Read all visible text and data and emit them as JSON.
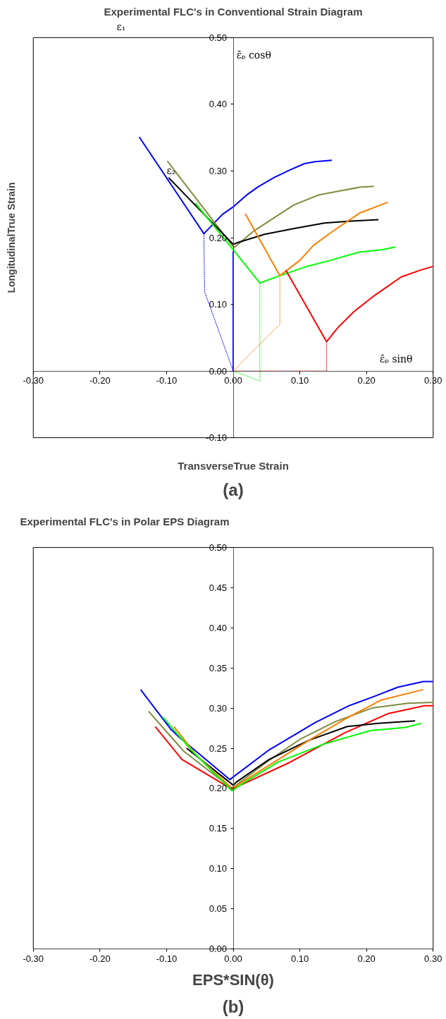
{
  "chart_data": [
    {
      "type": "line",
      "title": "Experimental FLC's in Conventional Strain Diagram",
      "xlabel": "TransverseTrue Strain",
      "ylabel": "LongitudinalTrue Strain",
      "annotations": [
        "ε₁",
        "ε₂",
        "ε̄ₚ cosθ",
        "ε̄ₚ sinθ",
        "(a)"
      ],
      "xlim": [
        -0.3,
        0.3
      ],
      "ylim": [
        -0.1,
        0.5
      ],
      "xticks": [
        {
          "value": -0.3,
          "label": "-0.30"
        },
        {
          "value": -0.2,
          "label": "-0.20"
        },
        {
          "value": -0.1,
          "label": "-0.10"
        },
        {
          "value": 0,
          "label": "0.00"
        },
        {
          "value": 0.1,
          "label": "0.10"
        },
        {
          "value": 0.2,
          "label": "0.20"
        },
        {
          "value": 0.3,
          "label": "0.30"
        }
      ],
      "yticks": [
        {
          "value": -0.1,
          "label": "-0.10"
        },
        {
          "value": 0,
          "label": "0.00"
        },
        {
          "value": 0.1,
          "label": "0.10"
        },
        {
          "value": 0.2,
          "label": "0.20"
        },
        {
          "value": 0.3,
          "label": "0.30"
        },
        {
          "value": 0.4,
          "label": "0.40"
        },
        {
          "value": 0.5,
          "label": "0.50"
        }
      ],
      "series": [
        {
          "color": "#0000ff",
          "x": [
            -0.141,
            -0.044,
            -0.016,
            0.001,
            0.019,
            0.037,
            0.061,
            0.086,
            0.107,
            0.123,
            0.148
          ],
          "values": [
            0.351,
            0.206,
            0.235,
            0.247,
            0.263,
            0.276,
            0.29,
            0.302,
            0.311,
            0.314,
            0.316
          ]
        },
        {
          "color": "#0000ff",
          "line_style": "dashed",
          "x": [
            -0.044,
            -0.043,
            0
          ],
          "values": [
            0.206,
            0.119,
            0
          ]
        },
        {
          "color": "#0000ff",
          "x": [
            0,
            0
          ],
          "values": [
            0,
            0.18
          ]
        },
        {
          "color": "#7f8c3f",
          "x": [
            -0.099,
            0.001,
            0.031,
            0.06,
            0.091,
            0.128,
            0.16,
            0.192,
            0.211
          ],
          "values": [
            0.315,
            0.185,
            0.21,
            0.229,
            0.249,
            0.264,
            0.27,
            0.276,
            0.277
          ]
        },
        {
          "color": "#000000",
          "x": [
            -0.097,
            0.0,
            0.005,
            0.047,
            0.093,
            0.137,
            0.181,
            0.218
          ],
          "values": [
            0.29,
            0.19,
            0.192,
            0.205,
            0.214,
            0.222,
            0.225,
            0.227
          ]
        },
        {
          "color": "#00ff00",
          "x": [
            -0.057,
            0,
            0.04,
            0.07,
            0.111,
            0.146,
            0.188,
            0.224,
            0.243
          ],
          "values": [
            0.252,
            0.182,
            0.132,
            0.143,
            0.157,
            0.166,
            0.178,
            0.182,
            0.186
          ]
        },
        {
          "color": "#00ff00",
          "line_style": "dashed",
          "x": [
            0.04,
            0.04,
            0
          ],
          "values": [
            0.132,
            -0.015,
            0
          ]
        },
        {
          "color": "#ff7f00",
          "x": [
            0.018,
            0.07,
            0.1,
            0.121,
            0.15,
            0.19,
            0.232
          ],
          "values": [
            0.236,
            0.143,
            0.166,
            0.189,
            0.21,
            0.237,
            0.253
          ]
        },
        {
          "color": "#ff7f00",
          "line_style": "dashed",
          "x": [
            0.07,
            0.07,
            0
          ],
          "values": [
            0.143,
            0.07,
            0
          ]
        },
        {
          "color": "#ff0000",
          "x": [
            0.079,
            0.14,
            0.157,
            0.181,
            0.213,
            0.252,
            0.28,
            0.3
          ],
          "values": [
            0.151,
            0.044,
            0.065,
            0.089,
            0.114,
            0.141,
            0.151,
            0.157
          ]
        },
        {
          "color": "#ff0000",
          "line_style": "dashed",
          "x": [
            0.14,
            0.14,
            0
          ],
          "values": [
            0.044,
            0,
            0
          ]
        }
      ]
    },
    {
      "type": "line",
      "title": "Experimental FLC's in Polar EPS Diagram",
      "xlabel": "EPS*SIN(θ)",
      "annotations": [
        "(b)"
      ],
      "xlim": [
        -0.3,
        0.3
      ],
      "ylim": [
        0,
        0.5
      ],
      "xticks": [
        {
          "value": -0.3,
          "label": "-0.30"
        },
        {
          "value": -0.2,
          "label": "-0.20"
        },
        {
          "value": -0.1,
          "label": "-0.10"
        },
        {
          "value": 0,
          "label": "0.00"
        },
        {
          "value": 0.1,
          "label": "0.10"
        },
        {
          "value": 0.2,
          "label": "0.20"
        },
        {
          "value": 0.3,
          "label": "0.30"
        }
      ],
      "yticks": [
        {
          "value": 0,
          "label": "0.00"
        },
        {
          "value": 0.05,
          "label": "0.05"
        },
        {
          "value": 0.1,
          "label": "0.10"
        },
        {
          "value": 0.15,
          "label": "0.15"
        },
        {
          "value": 0.2,
          "label": "0.20"
        },
        {
          "value": 0.25,
          "label": "0.25"
        },
        {
          "value": 0.3,
          "label": "0.30"
        },
        {
          "value": 0.35,
          "label": "0.35"
        },
        {
          "value": 0.4,
          "label": "0.40"
        },
        {
          "value": 0.45,
          "label": "0.45"
        },
        {
          "value": 0.5,
          "label": "0.50"
        }
      ],
      "series": [
        {
          "color": "#0000ff",
          "x": [
            -0.139,
            -0.094,
            -0.08,
            -0.005,
            0.054,
            0.123,
            0.174,
            0.21,
            0.247,
            0.285,
            0.3
          ],
          "values": [
            0.323,
            0.274,
            0.263,
            0.211,
            0.248,
            0.282,
            0.303,
            0.314,
            0.326,
            0.333,
            0.333
          ]
        },
        {
          "color": "#7f8c3f",
          "x": [
            -0.127,
            -0.074,
            -0.002,
            0.014,
            0.054,
            0.1,
            0.153,
            0.208,
            0.262,
            0.3
          ],
          "values": [
            0.296,
            0.246,
            0.2,
            0.21,
            0.235,
            0.261,
            0.283,
            0.3,
            0.306,
            0.307
          ]
        },
        {
          "color": "#ff0000",
          "x": [
            -0.117,
            -0.077,
            -0.002,
            0.019,
            0.084,
            0.167,
            0.232,
            0.287,
            0.3
          ],
          "values": [
            0.277,
            0.236,
            0.199,
            0.207,
            0.232,
            0.269,
            0.293,
            0.303,
            0.303
          ]
        },
        {
          "color": "#000000",
          "x": [
            -0.07,
            0,
            0.005,
            0.054,
            0.114,
            0.171,
            0.217,
            0.273
          ],
          "values": [
            0.25,
            0.204,
            0.208,
            0.236,
            0.26,
            0.277,
            0.281,
            0.284
          ]
        },
        {
          "color": "#ff7f00",
          "x": [
            -0.089,
            -0.055,
            -0.002,
            0.012,
            0.114,
            0.167,
            0.222,
            0.285
          ],
          "values": [
            0.277,
            0.241,
            0.2,
            0.207,
            0.26,
            0.286,
            0.31,
            0.323
          ]
        },
        {
          "color": "#00ff00",
          "x": [
            -0.106,
            -0.06,
            -0.002,
            0.016,
            0.068,
            0.139,
            0.206,
            0.259,
            0.282
          ],
          "values": [
            0.289,
            0.245,
            0.197,
            0.207,
            0.233,
            0.256,
            0.272,
            0.276,
            0.281
          ]
        }
      ]
    }
  ]
}
